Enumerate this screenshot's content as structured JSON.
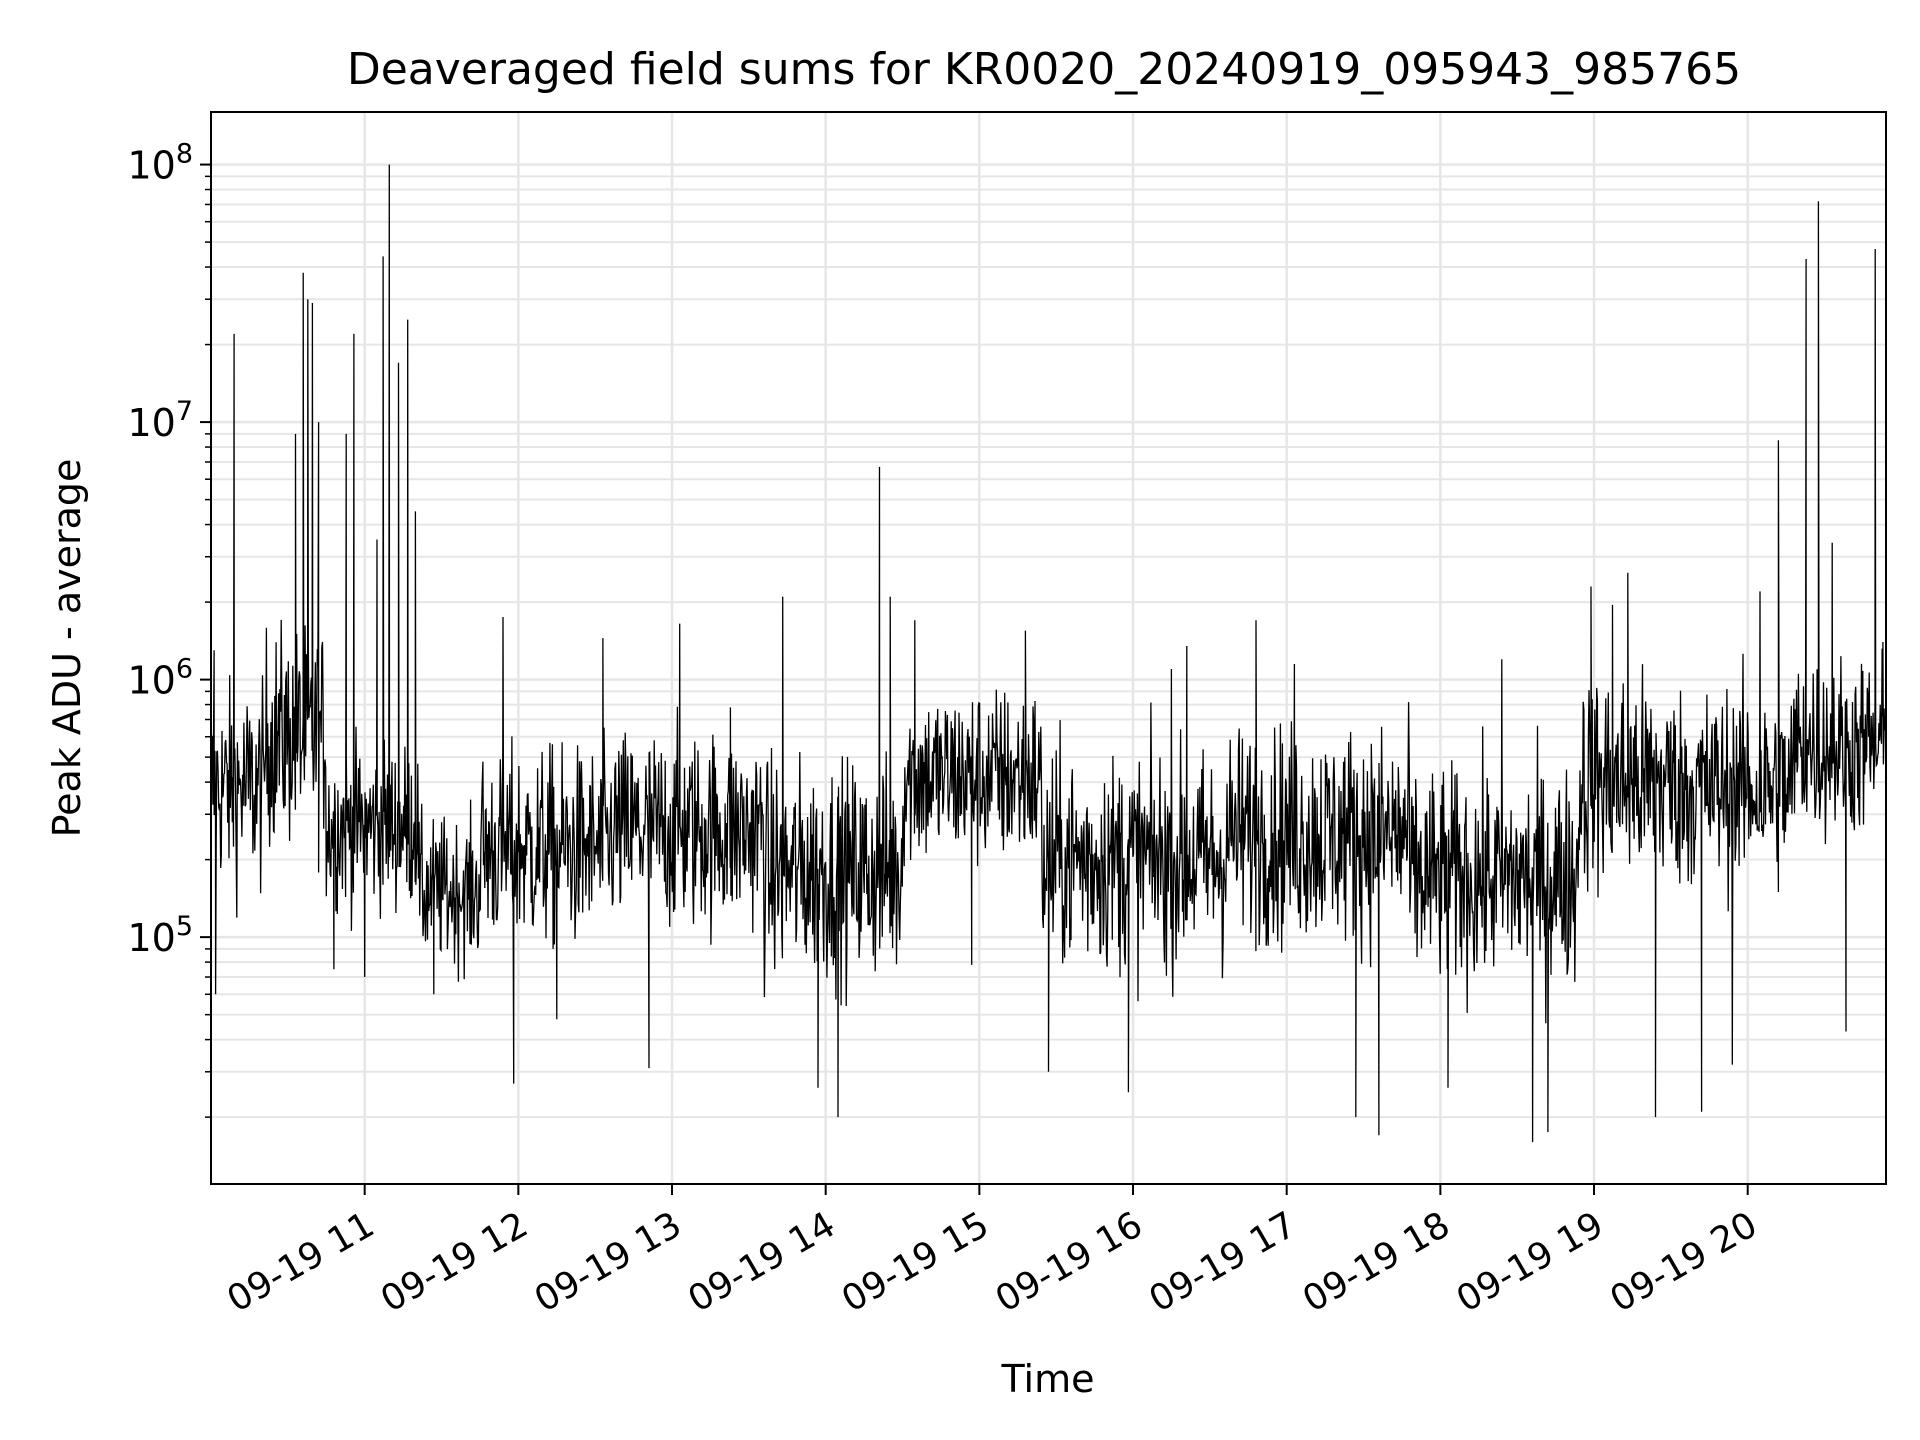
{
  "chart_data": {
    "type": "line",
    "title": "Deaveraged field sums for KR0020_20240919_095943_985765",
    "xlabel": "Time",
    "ylabel": "Peak ADU - average",
    "x_ticks": [
      "09-19 11",
      "09-19 12",
      "09-19 13",
      "09-19 14",
      "09-19 15",
      "09-19 16",
      "09-19 17",
      "09-19 18",
      "09-19 19",
      "09-19 20"
    ],
    "x_tick_hours": [
      11,
      12,
      13,
      14,
      15,
      16,
      17,
      18,
      19,
      20
    ],
    "xlim_hours": [
      10.0,
      20.9
    ],
    "y_scale": "log",
    "ylim": [
      11000,
      160000000
    ],
    "y_ticks": [
      {
        "value": 100000,
        "base": "10",
        "exp": "5"
      },
      {
        "value": 1000000,
        "base": "10",
        "exp": "6"
      },
      {
        "value": 10000000,
        "base": "10",
        "exp": "7"
      },
      {
        "value": 100000000,
        "base": "10",
        "exp": "8"
      }
    ],
    "grid": true,
    "line_color": "#000000",
    "grid_color": "#e6e6e6",
    "series": [
      {
        "segments": [
          {
            "start": 10.0,
            "end": 10.35,
            "base": 380000,
            "spread": 0.55,
            "spikes": [
              [
                10.02,
                1300000
              ],
              [
                10.03,
                60000
              ],
              [
                10.15,
                22000000
              ],
              [
                10.25,
                600000
              ]
            ]
          },
          {
            "start": 10.35,
            "end": 10.75,
            "base": 600000,
            "spread": 0.6,
            "spikes": [
              [
                10.55,
                9000000
              ],
              [
                10.6,
                38000000
              ],
              [
                10.63,
                30000000
              ],
              [
                10.66,
                29000000
              ],
              [
                10.7,
                10000000
              ]
            ]
          },
          {
            "start": 10.75,
            "end": 11.35,
            "base": 270000,
            "spread": 0.45,
            "spikes": [
              [
                10.8,
                75000
              ],
              [
                10.88,
                9000000
              ],
              [
                10.93,
                22000000
              ],
              [
                11.0,
                70000
              ],
              [
                11.08,
                3500000
              ],
              [
                11.12,
                44000000
              ],
              [
                11.16,
                100000000
              ],
              [
                11.22,
                17000000
              ],
              [
                11.28,
                25000000
              ],
              [
                11.33,
                4500000
              ]
            ]
          },
          {
            "start": 11.35,
            "end": 11.75,
            "base": 150000,
            "spread": 0.4,
            "spikes": [
              [
                11.45,
                60000
              ]
            ]
          },
          {
            "start": 11.75,
            "end": 12.6,
            "base": 220000,
            "spread": 0.55,
            "spikes": [
              [
                11.9,
                1750000
              ],
              [
                11.97,
                27000
              ],
              [
                12.25,
                48000
              ],
              [
                12.55,
                1450000
              ]
            ]
          },
          {
            "start": 12.6,
            "end": 13.6,
            "base": 260000,
            "spread": 0.55,
            "spikes": [
              [
                12.85,
                31000
              ],
              [
                13.05,
                1650000
              ],
              [
                13.38,
                780000
              ]
            ]
          },
          {
            "start": 13.6,
            "end": 14.5,
            "base": 180000,
            "spread": 0.6,
            "spikes": [
              [
                13.72,
                2100000
              ],
              [
                13.95,
                26000
              ],
              [
                14.08,
                20000
              ],
              [
                14.35,
                6700000
              ],
              [
                14.42,
                2100000
              ]
            ]
          },
          {
            "start": 14.5,
            "end": 15.4,
            "base": 420000,
            "spread": 0.5,
            "spikes": [
              [
                14.58,
                1700000
              ],
              [
                14.95,
                78000
              ],
              [
                15.3,
                1550000
              ]
            ]
          },
          {
            "start": 15.4,
            "end": 16.6,
            "base": 200000,
            "spread": 0.6,
            "spikes": [
              [
                15.45,
                30000
              ],
              [
                15.97,
                25000
              ],
              [
                16.25,
                1100000
              ],
              [
                16.35,
                1350000
              ]
            ]
          },
          {
            "start": 16.6,
            "end": 17.8,
            "base": 250000,
            "spread": 0.6,
            "spikes": [
              [
                16.8,
                1700000
              ],
              [
                17.05,
                1150000
              ],
              [
                17.45,
                20000
              ],
              [
                17.6,
                17000
              ]
            ]
          },
          {
            "start": 17.8,
            "end": 18.9,
            "base": 170000,
            "spread": 0.6,
            "spikes": [
              [
                18.05,
                26000
              ],
              [
                18.4,
                1200000
              ],
              [
                18.6,
                16000
              ],
              [
                18.7,
                17500
              ]
            ]
          },
          {
            "start": 18.9,
            "end": 19.5,
            "base": 400000,
            "spread": 0.6,
            "spikes": [
              [
                18.98,
                2300000
              ],
              [
                19.12,
                1950000
              ],
              [
                19.22,
                2600000
              ],
              [
                19.4,
                20000
              ]
            ]
          },
          {
            "start": 19.5,
            "end": 20.3,
            "base": 380000,
            "spread": 0.55,
            "spikes": [
              [
                19.7,
                21000
              ],
              [
                19.9,
                32000
              ],
              [
                20.08,
                2200000
              ],
              [
                20.2,
                8500000
              ]
            ]
          },
          {
            "start": 20.3,
            "end": 20.9,
            "base": 550000,
            "spread": 0.5,
            "spikes": [
              [
                20.38,
                43000000
              ],
              [
                20.46,
                72000000
              ],
              [
                20.55,
                3400000
              ],
              [
                20.64,
                43000
              ],
              [
                20.83,
                47000000
              ],
              [
                20.88,
                1400000
              ]
            ]
          }
        ]
      }
    ]
  }
}
